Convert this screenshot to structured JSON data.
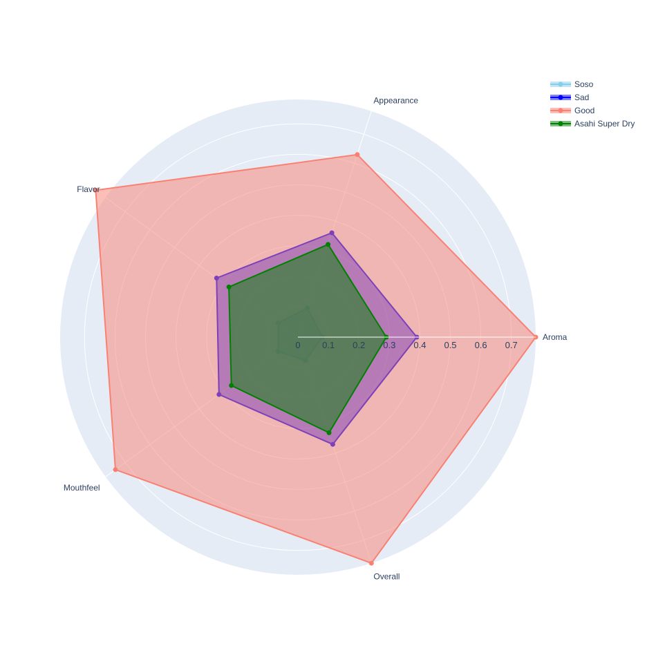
{
  "chart_data": {
    "type": "radar",
    "axes": [
      "Aroma",
      "Appearance",
      "Flavor",
      "Mouthfeel",
      "Overall"
    ],
    "radial_range": [
      0,
      0.78
    ],
    "radial_ticks": [
      0,
      0.1,
      0.2,
      0.3,
      0.4,
      0.5,
      0.6,
      0.7
    ],
    "radial_tick_labels": [
      "0",
      "0.1",
      "0.2",
      "0.3",
      "0.4",
      "0.5",
      "0.6",
      "0.7"
    ],
    "legend_position": "top-right",
    "series": [
      {
        "name": "Soso",
        "values": [
          0.08,
          0.1,
          0.08,
          0.08,
          0.08
        ],
        "color": "#87ceeb",
        "fill": "#87ceeb",
        "fill_opacity": 0.5
      },
      {
        "name": "Sad",
        "values": [
          0.39,
          0.36,
          0.33,
          0.32,
          0.37
        ],
        "color": "#0000ff",
        "fill": "#0000ff",
        "fill_opacity": 0.5
      },
      {
        "name": "Good",
        "values": [
          0.78,
          0.63,
          0.82,
          0.74,
          0.78
        ],
        "color": "#fa8072",
        "fill": "#fa8072",
        "fill_opacity": 0.5
      },
      {
        "name": "Asahi Super Dry",
        "values": [
          0.29,
          0.32,
          0.28,
          0.27,
          0.33
        ],
        "color": "#008000",
        "fill": "#008000",
        "fill_opacity": 0.5
      }
    ],
    "polar_bg_color": "#e5ecf6",
    "grid_color": "#ffffff",
    "text_color": "#2a3f5f"
  }
}
